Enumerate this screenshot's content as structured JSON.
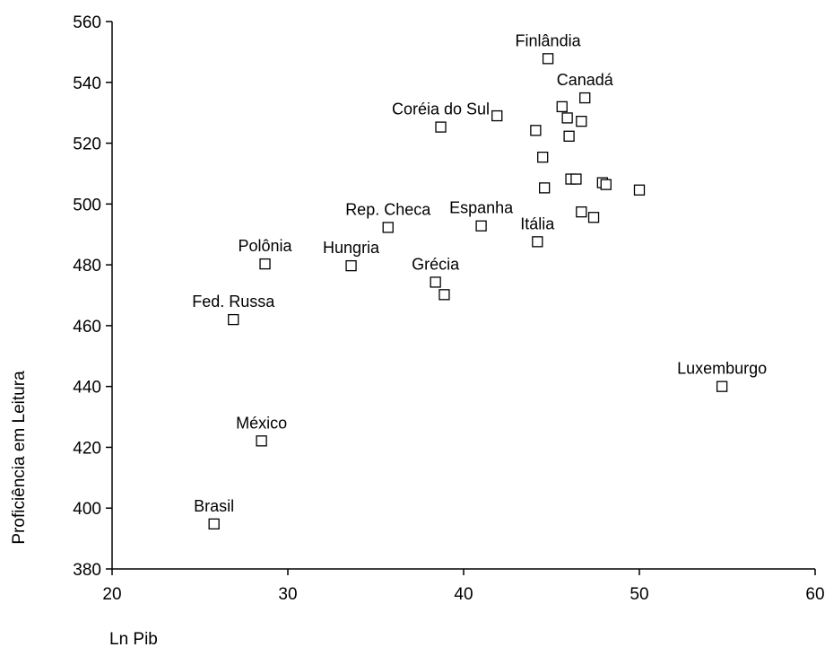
{
  "chart_data": {
    "type": "scatter",
    "title": "",
    "xlabel": "Ln Pib",
    "ylabel": "Proficiência em Leitura",
    "xlim": [
      20,
      60
    ],
    "ylim": [
      380,
      560
    ],
    "xticks": [
      20,
      30,
      40,
      50,
      60
    ],
    "yticks": [
      380,
      400,
      420,
      440,
      460,
      480,
      500,
      520,
      540,
      560
    ],
    "grid": false,
    "legend": "none",
    "marker": "hollow-square",
    "points": [
      {
        "x": 25.8,
        "y": 394.8,
        "label": "Brasil"
      },
      {
        "x": 28.5,
        "y": 422.1,
        "label": "México"
      },
      {
        "x": 26.9,
        "y": 462.0,
        "label": "Fed. Russa"
      },
      {
        "x": 28.7,
        "y": 480.3,
        "label": "Polônia"
      },
      {
        "x": 33.6,
        "y": 479.7,
        "label": "Hungria"
      },
      {
        "x": 35.7,
        "y": 492.3,
        "label": "Rep. Checa"
      },
      {
        "x": 38.4,
        "y": 474.3,
        "label": "Grécia"
      },
      {
        "x": 38.9,
        "y": 470.2,
        "label": ""
      },
      {
        "x": 38.7,
        "y": 525.3,
        "label": "Coréia do Sul"
      },
      {
        "x": 41.9,
        "y": 529.0,
        "label": ""
      },
      {
        "x": 41.0,
        "y": 492.8,
        "label": "Espanha"
      },
      {
        "x": 44.2,
        "y": 487.6,
        "label": "Itália"
      },
      {
        "x": 44.8,
        "y": 547.8,
        "label": "Finlândia"
      },
      {
        "x": 46.9,
        "y": 534.9,
        "label": "Canadá"
      },
      {
        "x": 45.6,
        "y": 532.0,
        "label": ""
      },
      {
        "x": 45.9,
        "y": 528.3,
        "label": ""
      },
      {
        "x": 46.7,
        "y": 527.2,
        "label": ""
      },
      {
        "x": 44.1,
        "y": 524.2,
        "label": ""
      },
      {
        "x": 46.0,
        "y": 522.3,
        "label": ""
      },
      {
        "x": 44.5,
        "y": 515.4,
        "label": ""
      },
      {
        "x": 44.6,
        "y": 505.3,
        "label": ""
      },
      {
        "x": 46.1,
        "y": 508.2,
        "label": ""
      },
      {
        "x": 46.4,
        "y": 508.2,
        "label": ""
      },
      {
        "x": 47.9,
        "y": 507.0,
        "label": ""
      },
      {
        "x": 48.1,
        "y": 506.4,
        "label": ""
      },
      {
        "x": 50.0,
        "y": 504.6,
        "label": ""
      },
      {
        "x": 46.7,
        "y": 497.4,
        "label": ""
      },
      {
        "x": 47.4,
        "y": 495.6,
        "label": ""
      },
      {
        "x": 54.7,
        "y": 440.0,
        "label": "Luxemburgo"
      }
    ]
  }
}
